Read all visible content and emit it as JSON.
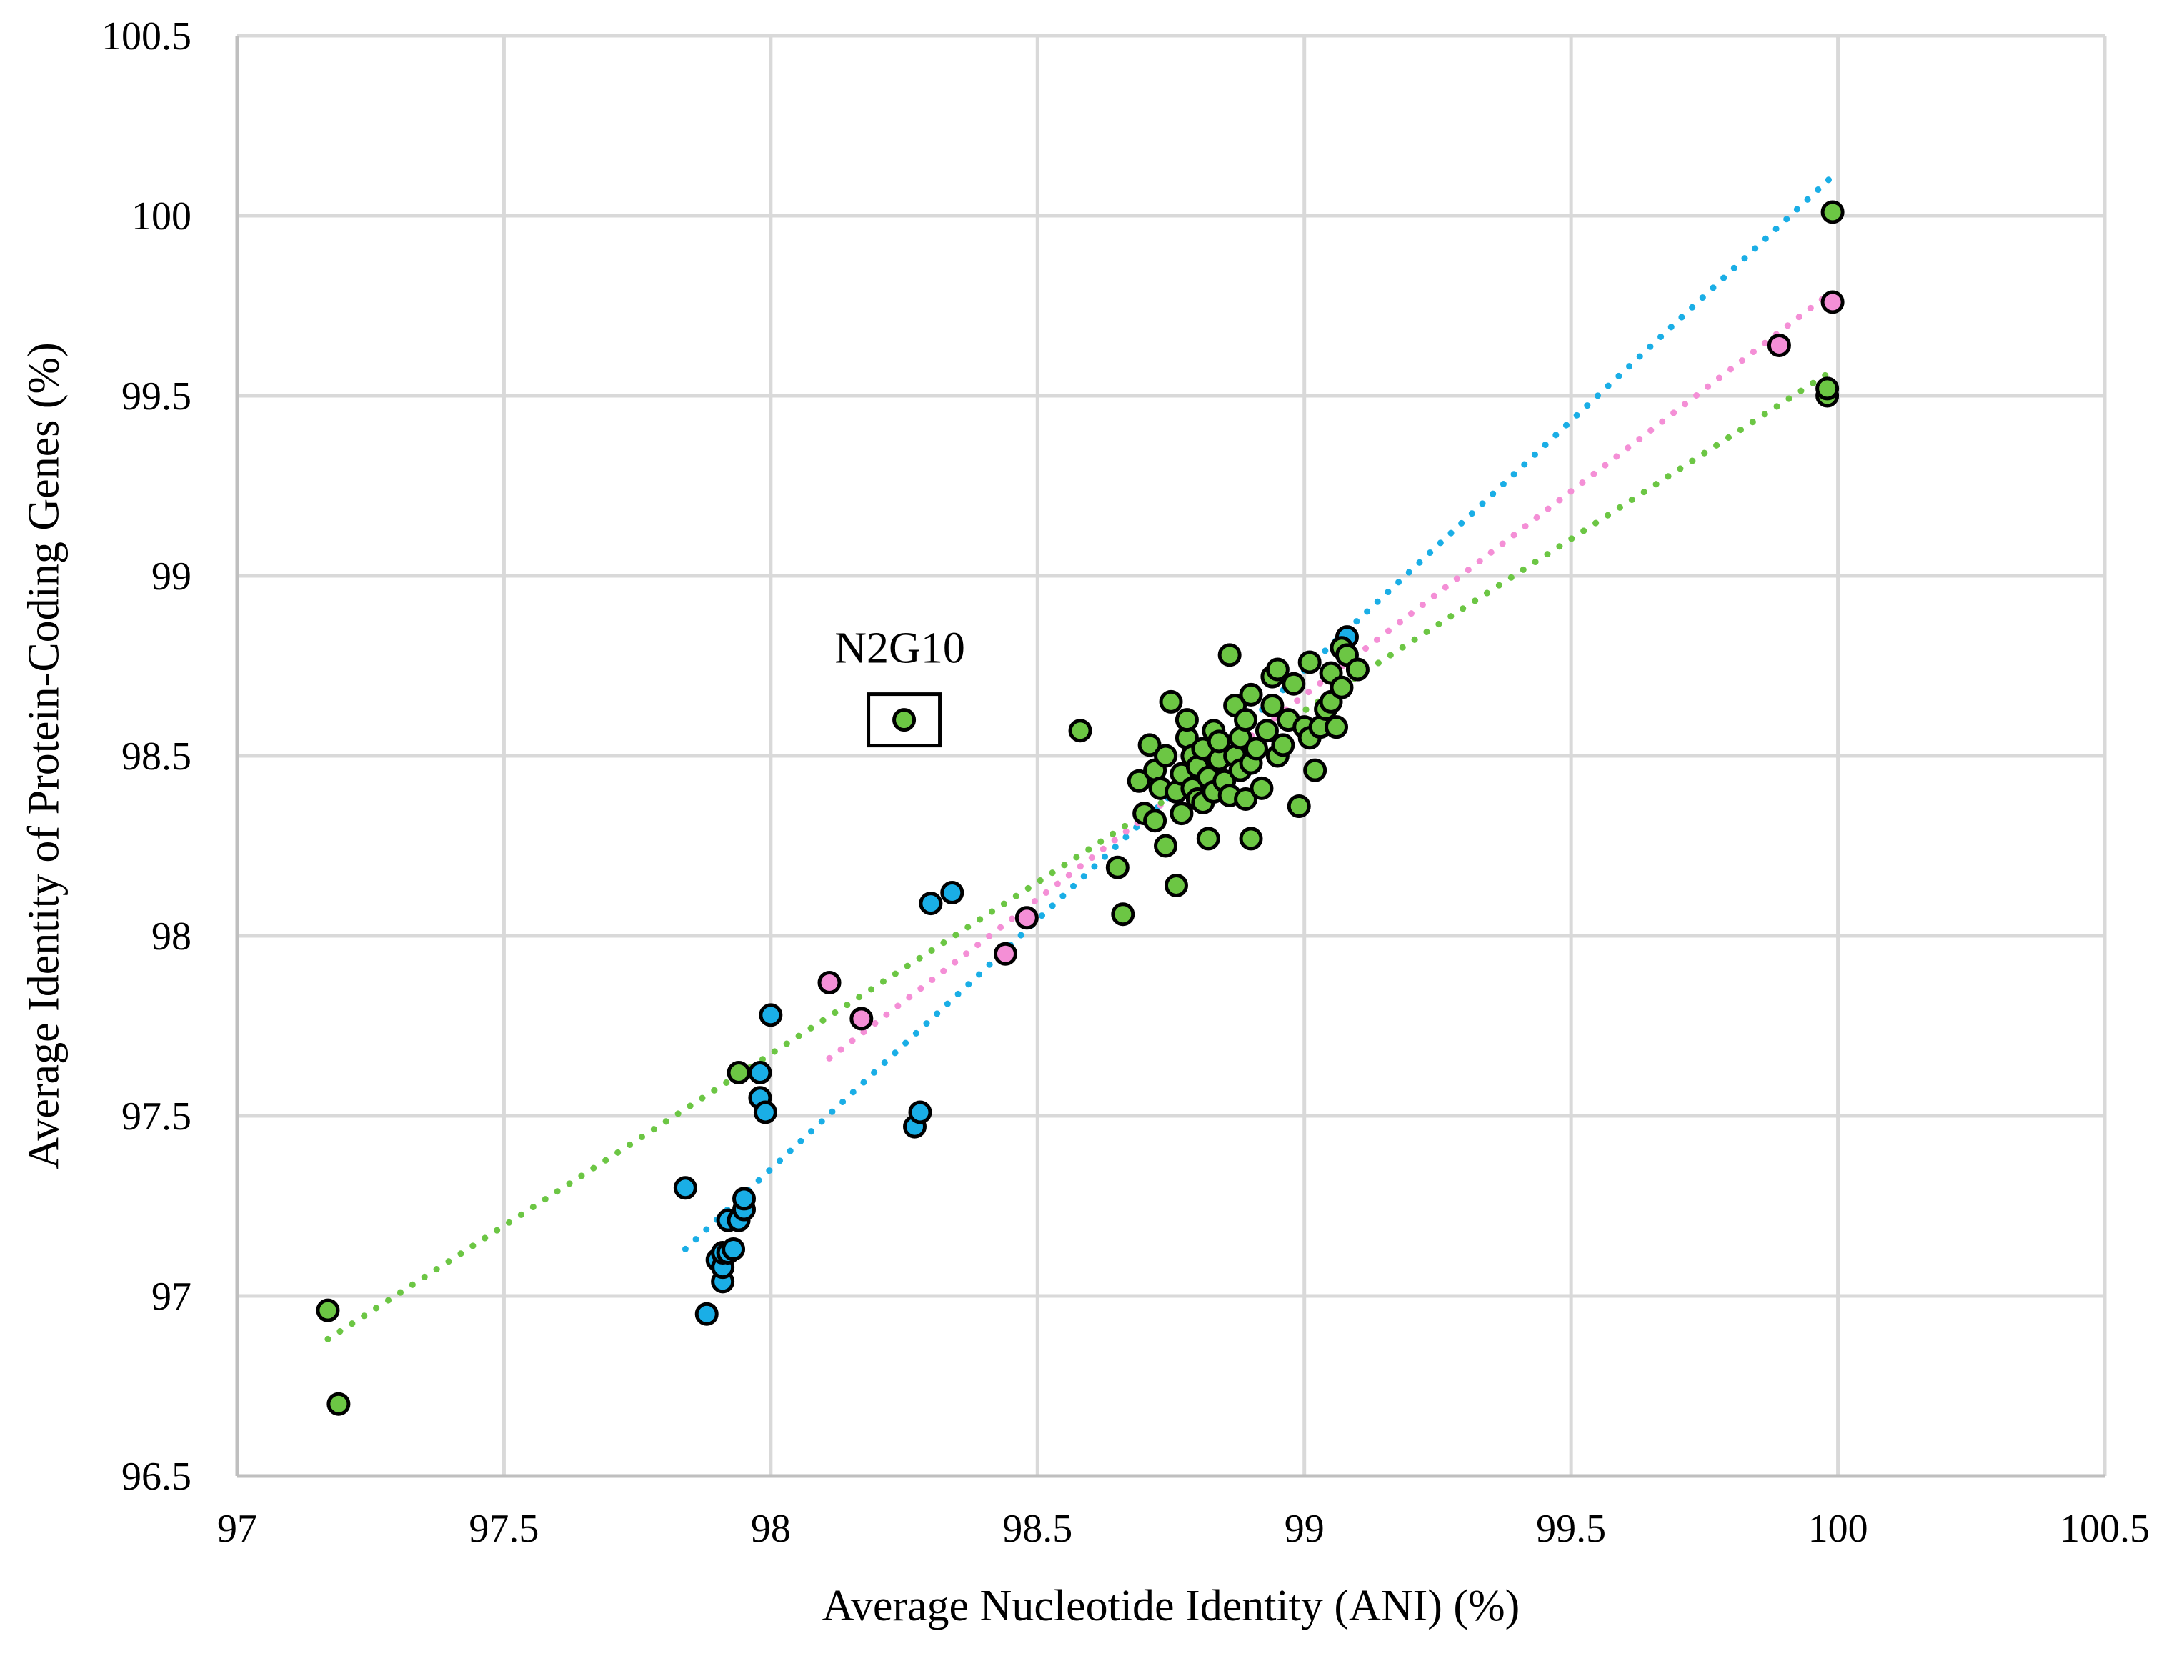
{
  "chart_data": {
    "type": "scatter",
    "title": "",
    "xlabel": "Average Nucleotide Identity (ANI) (%)",
    "ylabel": "Average Identity of Protein-Coding Genes (%)",
    "xlim": [
      97,
      100.5
    ],
    "ylim": [
      96.5,
      100.5
    ],
    "x_ticks": [
      97,
      97.5,
      98,
      98.5,
      99,
      99.5,
      100,
      100.5
    ],
    "y_ticks": [
      96.5,
      97,
      97.5,
      98,
      98.5,
      99,
      99.5,
      100,
      100.5
    ],
    "x_tick_labels": [
      "97",
      "97.5",
      "98",
      "98.5",
      "99",
      "99.5",
      "100",
      "100.5"
    ],
    "y_tick_labels": [
      "96.5",
      "97",
      "97.5",
      "98",
      "98.5",
      "99",
      "99.5",
      "100",
      "100.5"
    ],
    "grid": true,
    "legend": "none",
    "series": [
      {
        "name": "blue",
        "color": "#1aaee6",
        "points": [
          [
            97.84,
            97.3
          ],
          [
            97.88,
            96.95
          ],
          [
            97.9,
            97.1
          ],
          [
            97.91,
            97.04
          ],
          [
            97.91,
            97.08
          ],
          [
            97.91,
            97.12
          ],
          [
            97.92,
            97.21
          ],
          [
            97.92,
            97.12
          ],
          [
            97.93,
            97.13
          ],
          [
            97.94,
            97.21
          ],
          [
            97.95,
            97.24
          ],
          [
            97.95,
            97.27
          ],
          [
            97.98,
            97.62
          ],
          [
            97.98,
            97.55
          ],
          [
            97.99,
            97.51
          ],
          [
            98.0,
            97.78
          ],
          [
            98.27,
            97.47
          ],
          [
            98.28,
            97.51
          ],
          [
            98.3,
            98.09
          ],
          [
            98.34,
            98.12
          ],
          [
            99.08,
            98.83
          ]
        ],
        "trendline": {
          "x": [
            97.84,
            99.99
          ],
          "y": [
            97.13,
            100.11
          ]
        }
      },
      {
        "name": "pink",
        "color": "#f48fd6",
        "points": [
          [
            98.11,
            97.87
          ],
          [
            98.17,
            97.77
          ],
          [
            98.44,
            97.95
          ],
          [
            98.48,
            98.05
          ],
          [
            99.89,
            99.64
          ],
          [
            99.99,
            99.76
          ]
        ],
        "trendline": {
          "x": [
            98.11,
            99.99
          ],
          "y": [
            97.66,
            99.79
          ]
        }
      },
      {
        "name": "green",
        "color": "#6cc644",
        "points": [
          [
            97.17,
            96.96
          ],
          [
            97.19,
            96.7
          ],
          [
            97.94,
            97.62
          ],
          [
            98.25,
            98.6
          ],
          [
            98.58,
            98.57
          ],
          [
            98.65,
            98.19
          ],
          [
            98.66,
            98.06
          ],
          [
            98.69,
            98.43
          ],
          [
            98.7,
            98.34
          ],
          [
            98.71,
            98.53
          ],
          [
            98.72,
            98.46
          ],
          [
            98.72,
            98.32
          ],
          [
            98.73,
            98.41
          ],
          [
            98.74,
            98.25
          ],
          [
            98.74,
            98.5
          ],
          [
            98.75,
            98.65
          ],
          [
            98.76,
            98.14
          ],
          [
            98.76,
            98.4
          ],
          [
            98.77,
            98.34
          ],
          [
            98.77,
            98.45
          ],
          [
            98.78,
            98.55
          ],
          [
            98.78,
            98.6
          ],
          [
            98.79,
            98.41
          ],
          [
            98.79,
            98.5
          ],
          [
            98.8,
            98.38
          ],
          [
            98.8,
            98.47
          ],
          [
            98.81,
            98.52
          ],
          [
            98.81,
            98.37
          ],
          [
            98.82,
            98.44
          ],
          [
            98.82,
            98.27
          ],
          [
            98.83,
            98.57
          ],
          [
            98.83,
            98.4
          ],
          [
            98.84,
            98.49
          ],
          [
            98.84,
            98.54
          ],
          [
            98.85,
            98.43
          ],
          [
            98.86,
            98.78
          ],
          [
            98.86,
            98.39
          ],
          [
            98.87,
            98.5
          ],
          [
            98.87,
            98.64
          ],
          [
            98.88,
            98.46
          ],
          [
            98.88,
            98.55
          ],
          [
            98.89,
            98.38
          ],
          [
            98.89,
            98.6
          ],
          [
            98.9,
            98.67
          ],
          [
            98.9,
            98.27
          ],
          [
            98.9,
            98.48
          ],
          [
            98.91,
            98.52
          ],
          [
            98.92,
            98.41
          ],
          [
            98.93,
            98.57
          ],
          [
            98.94,
            98.64
          ],
          [
            98.94,
            98.72
          ],
          [
            98.95,
            98.5
          ],
          [
            98.95,
            98.74
          ],
          [
            98.96,
            98.53
          ],
          [
            98.97,
            98.6
          ],
          [
            98.98,
            98.7
          ],
          [
            98.99,
            98.36
          ],
          [
            99.0,
            98.58
          ],
          [
            99.01,
            98.76
          ],
          [
            99.01,
            98.55
          ],
          [
            99.02,
            98.46
          ],
          [
            99.03,
            98.58
          ],
          [
            99.04,
            98.63
          ],
          [
            99.05,
            98.65
          ],
          [
            99.05,
            98.73
          ],
          [
            99.06,
            98.58
          ],
          [
            99.07,
            98.8
          ],
          [
            99.07,
            98.69
          ],
          [
            99.08,
            98.78
          ],
          [
            99.1,
            98.74
          ],
          [
            99.98,
            99.5
          ],
          [
            99.98,
            99.52
          ],
          [
            99.99,
            100.01
          ]
        ],
        "trendline": {
          "x": [
            97.17,
            99.99
          ],
          "y": [
            96.88,
            99.57
          ]
        }
      }
    ],
    "annotations": [
      {
        "text": "N2G10",
        "x": 98.25,
        "y": 98.6,
        "boxed": true
      }
    ]
  }
}
